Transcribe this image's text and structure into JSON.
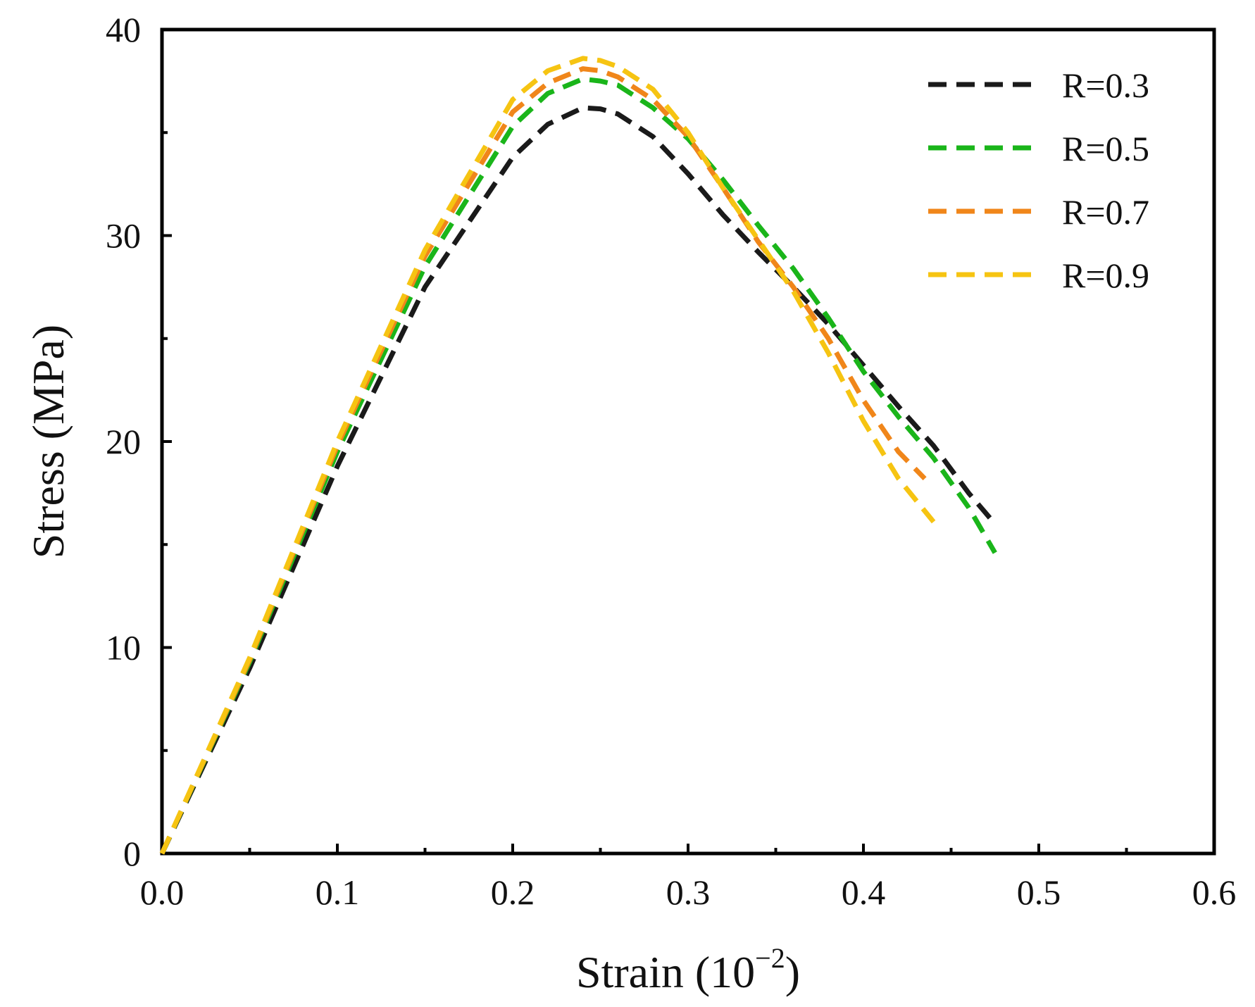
{
  "chart_data": {
    "type": "line",
    "title": "",
    "xlabel": "Strain",
    "xlabel_unit_open": "(10",
    "xlabel_unit_exp": "−2",
    "xlabel_unit_close": ")",
    "ylabel": "Stress (MPa)",
    "xlim": [
      0.0,
      0.6
    ],
    "ylim": [
      0,
      40
    ],
    "x_ticks": [
      "0.0",
      "0.1",
      "0.2",
      "0.3",
      "0.4",
      "0.5",
      "0.6"
    ],
    "y_ticks": [
      "0",
      "10",
      "20",
      "30",
      "40"
    ],
    "x_tick_values": [
      0.0,
      0.1,
      0.2,
      0.3,
      0.4,
      0.5,
      0.6
    ],
    "y_tick_values": [
      0,
      10,
      20,
      30,
      40
    ],
    "x_minor_tick_values": [
      0.05,
      0.15,
      0.25,
      0.35,
      0.45,
      0.55
    ],
    "y_minor_tick_values": [
      5,
      15,
      25,
      35
    ],
    "grid": false,
    "legend_position": "top-right",
    "series": [
      {
        "name": "R=0.3",
        "color": "#1a1a1a",
        "x": [
          0.0,
          0.05,
          0.1,
          0.15,
          0.2,
          0.22,
          0.24,
          0.25,
          0.26,
          0.28,
          0.3,
          0.32,
          0.34,
          0.36,
          0.38,
          0.4,
          0.42,
          0.44,
          0.46,
          0.475
        ],
        "y": [
          0.0,
          9.0,
          18.8,
          27.5,
          33.8,
          35.4,
          36.2,
          36.15,
          35.9,
          34.8,
          33.0,
          31.0,
          29.2,
          27.5,
          25.7,
          23.7,
          21.7,
          19.8,
          17.5,
          16.0
        ]
      },
      {
        "name": "R=0.5",
        "color": "#1ab51a",
        "x": [
          0.0,
          0.05,
          0.1,
          0.15,
          0.2,
          0.22,
          0.24,
          0.25,
          0.26,
          0.28,
          0.3,
          0.32,
          0.34,
          0.36,
          0.38,
          0.4,
          0.42,
          0.44,
          0.46,
          0.475
        ],
        "y": [
          0.0,
          9.3,
          19.5,
          28.5,
          35.3,
          36.9,
          37.6,
          37.5,
          37.3,
          36.2,
          34.7,
          32.7,
          30.5,
          28.4,
          26.0,
          23.4,
          21.2,
          19.2,
          16.8,
          14.6
        ]
      },
      {
        "name": "R=0.7",
        "color": "#f0861a",
        "x": [
          0.0,
          0.05,
          0.1,
          0.15,
          0.2,
          0.22,
          0.24,
          0.25,
          0.26,
          0.28,
          0.3,
          0.32,
          0.34,
          0.36,
          0.38,
          0.4,
          0.42,
          0.435
        ],
        "y": [
          0.0,
          9.4,
          19.8,
          29.0,
          36.0,
          37.4,
          38.1,
          38.0,
          37.7,
          36.6,
          34.8,
          32.3,
          29.7,
          27.5,
          25.0,
          22.0,
          19.5,
          18.2
        ]
      },
      {
        "name": "R=0.9",
        "color": "#f6c412",
        "x": [
          0.0,
          0.05,
          0.1,
          0.15,
          0.2,
          0.22,
          0.24,
          0.25,
          0.26,
          0.28,
          0.3,
          0.32,
          0.34,
          0.36,
          0.38,
          0.4,
          0.42,
          0.44
        ],
        "y": [
          0.0,
          9.5,
          20.0,
          29.3,
          36.6,
          38.0,
          38.6,
          38.5,
          38.2,
          37.1,
          35.0,
          32.3,
          29.8,
          27.3,
          24.3,
          21.0,
          18.2,
          16.1
        ]
      }
    ]
  }
}
